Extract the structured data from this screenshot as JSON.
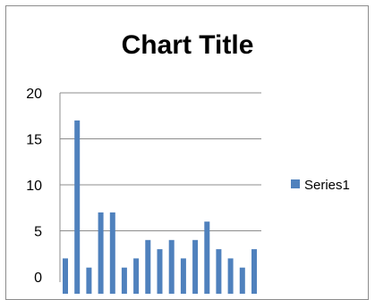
{
  "chart_data": {
    "type": "bar",
    "title": "Chart Title",
    "xlabel": "",
    "ylabel": "",
    "ylim": [
      0,
      20
    ],
    "yticks": [
      0,
      5,
      10,
      15,
      20
    ],
    "grid": true,
    "legend_position": "right",
    "series": [
      {
        "name": "Series1",
        "color": "#4f81bd",
        "values": [
          2,
          17,
          1,
          7,
          7,
          1,
          2,
          4,
          3,
          4,
          2,
          4,
          6,
          3,
          2,
          1,
          3
        ]
      }
    ]
  }
}
